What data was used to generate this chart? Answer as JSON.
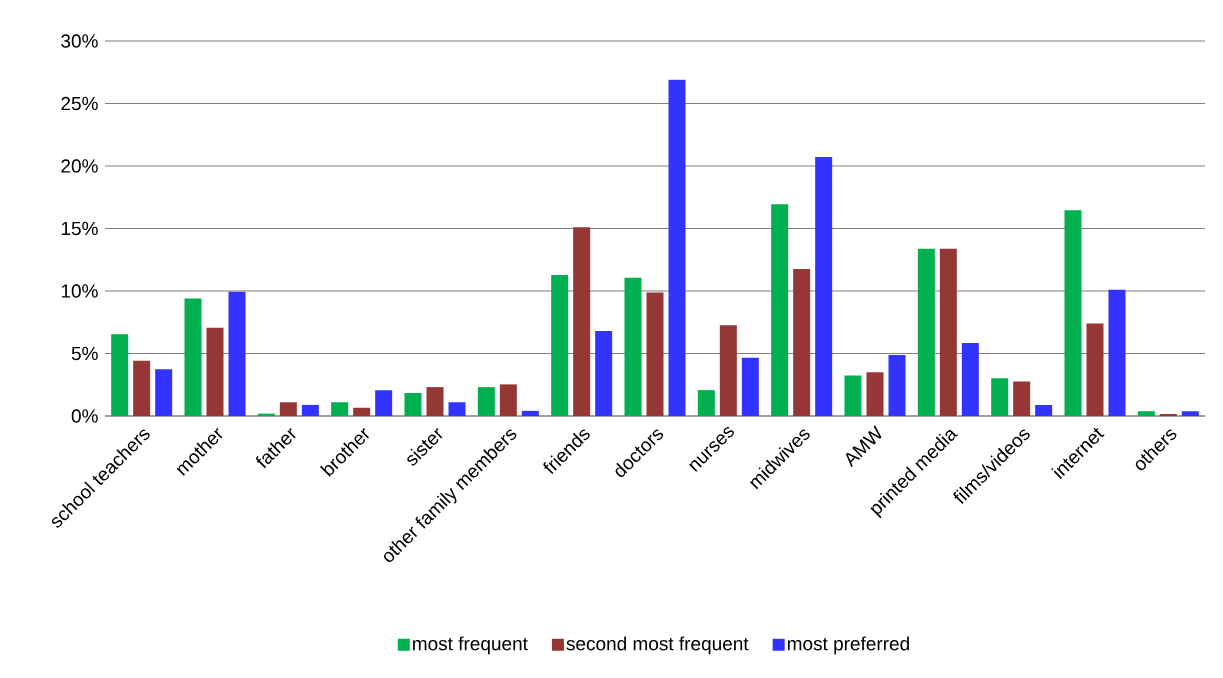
{
  "chart_data": {
    "type": "bar",
    "categories": [
      "school teachers",
      "mother",
      "father",
      "brother",
      "sister",
      "other family members",
      "friends",
      "doctors",
      "nurses",
      "midwives",
      "AMW",
      "printed media",
      "films/videos",
      "internet",
      "others"
    ],
    "series": [
      {
        "name": "most frequent",
        "color": "#00b050",
        "values": [
          6.55,
          9.4,
          0.19,
          1.1,
          1.84,
          2.31,
          11.27,
          11.06,
          2.07,
          16.94,
          3.24,
          13.38,
          3.02,
          16.46,
          0.38
        ]
      },
      {
        "name": "second most frequent",
        "color": "#953735",
        "values": [
          4.43,
          7.06,
          1.1,
          0.66,
          2.31,
          2.53,
          15.1,
          9.88,
          7.25,
          11.76,
          3.5,
          13.38,
          2.76,
          7.4,
          0.16
        ]
      },
      {
        "name": "most preferred",
        "color": "#3333ff",
        "values": [
          3.73,
          9.94,
          0.89,
          2.06,
          1.1,
          0.41,
          6.8,
          26.9,
          4.67,
          20.72,
          4.89,
          5.85,
          0.89,
          10.1,
          0.38
        ]
      }
    ],
    "ylim": [
      0,
      30
    ],
    "yticks": [
      {
        "value": 0,
        "label": "0%"
      },
      {
        "value": 5,
        "label": "5%"
      },
      {
        "value": 10,
        "label": "10%"
      },
      {
        "value": 15,
        "label": "15%"
      },
      {
        "value": 20,
        "label": "20%"
      },
      {
        "value": 25,
        "label": "25%"
      },
      {
        "value": 30,
        "label": "30%"
      }
    ],
    "grid": "y",
    "legend": "bottom"
  }
}
